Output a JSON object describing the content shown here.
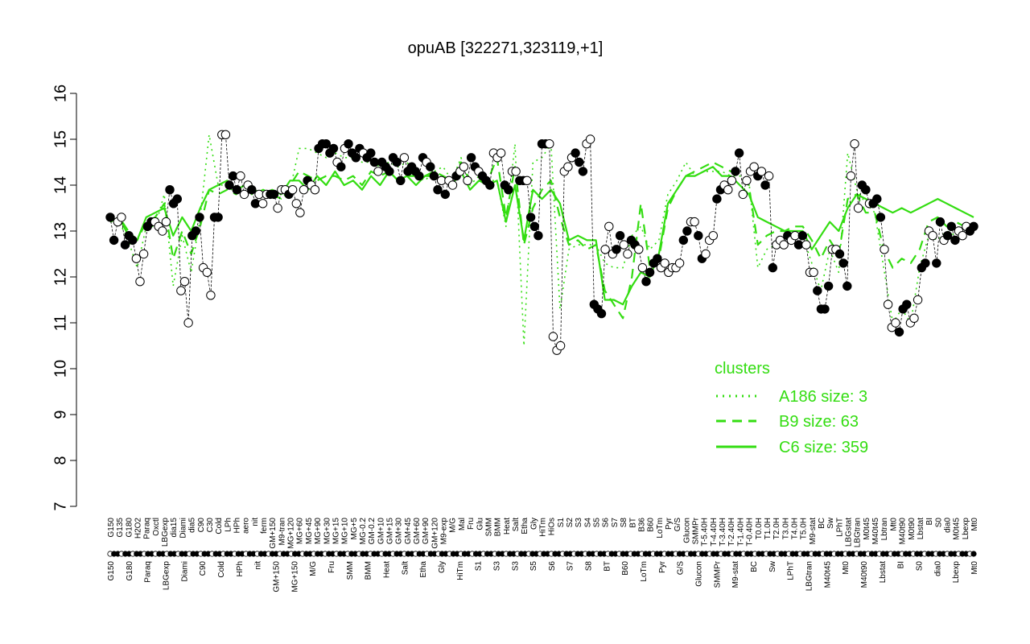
{
  "chart_data": {
    "type": "line",
    "title": "opuAB [322271,323119,+1]",
    "xlabel": "",
    "ylabel": "",
    "ylim": [
      7,
      16
    ],
    "yticks": [
      "7",
      "8",
      "9",
      "10",
      "11",
      "12",
      "13",
      "14",
      "15",
      "16"
    ],
    "colors": {
      "lines": "#33dd11",
      "point_fill_dark": "#000000",
      "point_fill_light": "#ffffff"
    },
    "xlabels_upper": [
      "G150",
      "G135",
      "G180",
      "H2O2",
      "Paraq",
      "Oxctl",
      "LBGexp",
      "dia15",
      "Diami",
      "dia5",
      "C90",
      "C30",
      "Cold",
      "LPh",
      "HPh",
      "aero",
      "nit",
      "ferm",
      "GM+150",
      "M9-tran",
      "MG+120",
      "MG+60",
      "MG+45",
      "MG+90",
      "MG+30",
      "MG+15",
      "MG+10",
      "MG+5",
      "MG-0.2",
      "GM-0.2",
      "GM+10",
      "GM+15",
      "GM+30",
      "GM+45",
      "GM+60",
      "GM+90",
      "GM+120",
      "M9-exp",
      "M/G",
      "Mal",
      "Fru",
      "Glu",
      "SMM",
      "BMM",
      "Heat",
      "Salt",
      "Etha",
      "Gly",
      "HiTm",
      "HiOs",
      "S1",
      "S2",
      "S3",
      "S4",
      "S5",
      "S6",
      "S7",
      "S8",
      "BT",
      "B36",
      "B60",
      "LoTm",
      "Pyr",
      "G/S",
      "Glucon",
      "SMMPr",
      "T-5.40H",
      "T-4.40H",
      "T-3.40H",
      "T-2.40H",
      "T-1.40H",
      "T-0.40H",
      "T0.0H",
      "T1.0H",
      "T2.0H",
      "T3.0H",
      "T4.0H",
      "T5.0H",
      "M9-stat",
      "BC",
      "Sw",
      "LPhT",
      "LBGstat",
      "LBGtran",
      "M0t45",
      "M40t45",
      "Lbtran",
      "Mt0",
      "M40t90",
      "M0t90",
      "Lbstat",
      "BI",
      "S0",
      "dia0",
      "M0t45",
      "Lbexp",
      "Mt0"
    ],
    "xlabels_lower": [
      "G150",
      "G180",
      "Paraq",
      "LBGexp",
      "Diami",
      "C90",
      "Cold",
      "HPh",
      "nit",
      "GM+150",
      "MG+150",
      "M/G",
      "Fru",
      "SMM",
      "BMM",
      "Heat",
      "Salt",
      "Etha",
      "Gly",
      "HiTm",
      "S1",
      "S3",
      "S3",
      "S5",
      "S6",
      "S7",
      "S8",
      "BT",
      "B60",
      "LoTm",
      "Pyr",
      "G/S",
      "Glucon",
      "SMMPr",
      "M9-stat",
      "BC",
      "Sw",
      "LPhT",
      "LBGtran",
      "M40t45",
      "Mt0",
      "M40t90",
      "Lbstat",
      "BI",
      "S0",
      "dia0",
      "Lbexp",
      "Mt0"
    ],
    "series": [
      {
        "name": "A186 size: 3",
        "style": "dotted",
        "values": [
          13.3,
          13.2,
          12.8,
          12.2,
          13.1,
          13.1,
          13.8,
          11.8,
          12.9,
          12.1,
          13.3,
          15.1,
          14.0,
          14.0,
          13.8,
          13.8,
          13.8,
          13.8,
          13.9,
          13.7,
          13.9,
          14.8,
          14.8,
          14.7,
          14.6,
          14.7,
          14.6,
          14.6,
          14.5,
          14.5,
          14.4,
          14.5,
          14.4,
          14.5,
          14.2,
          14.1,
          14.3,
          14.4,
          14.1,
          14.6,
          14.0,
          14.2,
          14.1,
          14.1,
          13.1,
          14.9,
          10.5,
          14.5,
          14.6,
          14.9,
          11.3,
          12.6,
          12.7,
          12.7,
          12.7,
          12.3,
          12.2,
          12.2,
          12.9,
          13.1,
          12.6,
          12.8,
          13.8,
          14.1,
          14.5,
          14.2,
          14.3,
          14.3,
          14.3,
          14.2,
          14.2,
          14.1,
          12.2,
          12.6,
          12.7,
          12.8,
          12.9,
          12.9,
          12.3,
          11.7,
          12.6,
          12.1,
          14.7,
          13.9,
          13.6,
          13.4,
          12.2,
          11.0,
          11.3,
          11.0,
          12.2,
          12.9,
          12.8,
          13.0,
          12.9,
          13.0,
          13.1
        ]
      },
      {
        "name": "B9 size: 63",
        "style": "dashed",
        "values": [
          13.2,
          13.3,
          13.0,
          12.8,
          13.2,
          13.3,
          13.6,
          12.4,
          13.0,
          12.5,
          13.1,
          13.9,
          13.8,
          13.9,
          13.8,
          14.0,
          13.8,
          13.9,
          13.8,
          13.7,
          14.0,
          14.3,
          14.2,
          14.1,
          14.2,
          14.2,
          14.1,
          14.2,
          14.0,
          14.3,
          14.2,
          14.3,
          14.1,
          14.2,
          14.2,
          14.2,
          14.3,
          14.2,
          14.1,
          14.5,
          14.1,
          14.1,
          14.1,
          14.6,
          13.3,
          14.4,
          12.7,
          13.5,
          13.9,
          14.1,
          13.3,
          12.7,
          12.8,
          12.6,
          12.7,
          11.7,
          11.4,
          11.1,
          12.0,
          13.6,
          12.2,
          12.4,
          13.5,
          13.9,
          14.2,
          14.3,
          14.4,
          14.5,
          14.4,
          14.3,
          14.2,
          14.0,
          12.7,
          12.9,
          13.0,
          13.0,
          13.1,
          13.1,
          12.8,
          12.4,
          12.8,
          12.5,
          13.7,
          13.8,
          13.4,
          13.4,
          12.6,
          12.2,
          12.4,
          12.3,
          12.6,
          13.2,
          13.3,
          13.1,
          13.2,
          13.1,
          13.1
        ]
      },
      {
        "name": "C6 size: 359",
        "style": "solid",
        "values": [
          13.2,
          13.3,
          12.9,
          12.8,
          13.3,
          13.4,
          13.5,
          12.9,
          13.3,
          13.0,
          13.5,
          13.9,
          14.0,
          14.1,
          13.9,
          14.0,
          13.9,
          13.8,
          13.9,
          13.8,
          14.1,
          14.1,
          13.9,
          14.2,
          14.0,
          14.3,
          14.0,
          14.1,
          13.9,
          14.2,
          14.0,
          14.3,
          14.1,
          14.2,
          14.0,
          14.2,
          14.2,
          14.1,
          14.0,
          14.3,
          13.9,
          14.1,
          14.0,
          14.1,
          13.2,
          14.0,
          12.8,
          13.9,
          13.7,
          13.9,
          13.6,
          12.8,
          12.9,
          12.8,
          12.8,
          11.5,
          11.5,
          11.4,
          11.8,
          12.1,
          12.0,
          12.5,
          13.6,
          13.9,
          14.2,
          14.2,
          14.3,
          14.4,
          14.2,
          14.2,
          14.0,
          13.8,
          13.3,
          13.2,
          13.1,
          13.0,
          13.0,
          13.0,
          12.6,
          12.9,
          13.2,
          13.0,
          13.5,
          13.8,
          13.7,
          13.6,
          13.5,
          13.4,
          13.5,
          13.4,
          13.5,
          13.6,
          13.7,
          13.6,
          13.5,
          13.4,
          13.3
        ]
      }
    ],
    "points": [
      {
        "v": 13.3,
        "d": 1
      },
      {
        "v": 12.8,
        "d": 1
      },
      {
        "v": 13.2,
        "d": 0
      },
      {
        "v": 13.3,
        "d": 0
      },
      {
        "v": 12.7,
        "d": 1
      },
      {
        "v": 12.9,
        "d": 1
      },
      {
        "v": 12.8,
        "d": 1
      },
      {
        "v": 12.4,
        "d": 0
      },
      {
        "v": 11.9,
        "d": 0
      },
      {
        "v": 12.5,
        "d": 0
      },
      {
        "v": 13.1,
        "d": 1
      },
      {
        "v": 13.2,
        "d": 1
      },
      {
        "v": 13.2,
        "d": 0
      },
      {
        "v": 13.1,
        "d": 0
      },
      {
        "v": 13.0,
        "d": 0
      },
      {
        "v": 13.2,
        "d": 0
      },
      {
        "v": 13.9,
        "d": 1
      },
      {
        "v": 13.6,
        "d": 1
      },
      {
        "v": 13.7,
        "d": 1
      },
      {
        "v": 11.7,
        "d": 0
      },
      {
        "v": 11.9,
        "d": 0
      },
      {
        "v": 11.0,
        "d": 0
      },
      {
        "v": 12.9,
        "d": 1
      },
      {
        "v": 13.0,
        "d": 1
      },
      {
        "v": 13.3,
        "d": 1
      },
      {
        "v": 12.2,
        "d": 0
      },
      {
        "v": 12.1,
        "d": 0
      },
      {
        "v": 11.6,
        "d": 0
      },
      {
        "v": 13.3,
        "d": 1
      },
      {
        "v": 13.3,
        "d": 1
      },
      {
        "v": 15.1,
        "d": 0
      },
      {
        "v": 15.1,
        "d": 0
      },
      {
        "v": 14.0,
        "d": 1
      },
      {
        "v": 14.2,
        "d": 1
      },
      {
        "v": 13.9,
        "d": 1
      },
      {
        "v": 14.2,
        "d": 0
      },
      {
        "v": 13.8,
        "d": 0
      },
      {
        "v": 14.0,
        "d": 0
      },
      {
        "v": 13.9,
        "d": 1
      },
      {
        "v": 13.6,
        "d": 1
      },
      {
        "v": 13.8,
        "d": 0
      },
      {
        "v": 13.6,
        "d": 0
      },
      {
        "v": 13.8,
        "d": 0
      },
      {
        "v": 13.8,
        "d": 1
      },
      {
        "v": 13.8,
        "d": 1
      },
      {
        "v": 13.5,
        "d": 0
      },
      {
        "v": 13.9,
        "d": 0
      },
      {
        "v": 13.9,
        "d": 0
      },
      {
        "v": 13.8,
        "d": 1
      },
      {
        "v": 13.9,
        "d": 0
      },
      {
        "v": 13.6,
        "d": 0
      },
      {
        "v": 13.4,
        "d": 0
      },
      {
        "v": 13.9,
        "d": 0
      },
      {
        "v": 14.1,
        "d": 1
      },
      {
        "v": 14.0,
        "d": 0
      },
      {
        "v": 13.9,
        "d": 0
      },
      {
        "v": 14.8,
        "d": 1
      },
      {
        "v": 14.9,
        "d": 1
      },
      {
        "v": 14.9,
        "d": 1
      },
      {
        "v": 14.7,
        "d": 1
      },
      {
        "v": 14.8,
        "d": 1
      },
      {
        "v": 14.5,
        "d": 0
      },
      {
        "v": 14.4,
        "d": 1
      },
      {
        "v": 14.8,
        "d": 0
      },
      {
        "v": 14.9,
        "d": 1
      },
      {
        "v": 14.7,
        "d": 1
      },
      {
        "v": 14.6,
        "d": 1
      },
      {
        "v": 14.8,
        "d": 1
      },
      {
        "v": 14.7,
        "d": 0
      },
      {
        "v": 14.6,
        "d": 1
      },
      {
        "v": 14.7,
        "d": 1
      },
      {
        "v": 14.5,
        "d": 1
      },
      {
        "v": 14.3,
        "d": 0
      },
      {
        "v": 14.5,
        "d": 1
      },
      {
        "v": 14.4,
        "d": 1
      },
      {
        "v": 14.3,
        "d": 1
      },
      {
        "v": 14.6,
        "d": 1
      },
      {
        "v": 14.5,
        "d": 1
      },
      {
        "v": 14.1,
        "d": 1
      },
      {
        "v": 14.6,
        "d": 0
      },
      {
        "v": 14.3,
        "d": 1
      },
      {
        "v": 14.4,
        "d": 1
      },
      {
        "v": 14.3,
        "d": 1
      },
      {
        "v": 14.2,
        "d": 1
      },
      {
        "v": 14.6,
        "d": 1
      },
      {
        "v": 14.5,
        "d": 0
      },
      {
        "v": 14.4,
        "d": 1
      },
      {
        "v": 14.2,
        "d": 1
      },
      {
        "v": 13.9,
        "d": 1
      },
      {
        "v": 14.1,
        "d": 0
      },
      {
        "v": 13.8,
        "d": 1
      },
      {
        "v": 14.1,
        "d": 0
      },
      {
        "v": 14.0,
        "d": 0
      },
      {
        "v": 14.2,
        "d": 1
      },
      {
        "v": 14.3,
        "d": 0
      },
      {
        "v": 14.4,
        "d": 0
      },
      {
        "v": 14.1,
        "d": 0
      },
      {
        "v": 14.6,
        "d": 1
      },
      {
        "v": 14.4,
        "d": 1
      },
      {
        "v": 14.3,
        "d": 0
      },
      {
        "v": 14.2,
        "d": 1
      },
      {
        "v": 14.1,
        "d": 1
      },
      {
        "v": 14.0,
        "d": 1
      },
      {
        "v": 14.7,
        "d": 0
      },
      {
        "v": 14.6,
        "d": 0
      },
      {
        "v": 14.7,
        "d": 0
      },
      {
        "v": 14.0,
        "d": 1
      },
      {
        "v": 13.9,
        "d": 1
      },
      {
        "v": 14.3,
        "d": 0
      },
      {
        "v": 14.3,
        "d": 0
      },
      {
        "v": 14.1,
        "d": 1
      },
      {
        "v": 14.1,
        "d": 1
      },
      {
        "v": 14.1,
        "d": 0
      },
      {
        "v": 13.3,
        "d": 1
      },
      {
        "v": 13.1,
        "d": 1
      },
      {
        "v": 12.9,
        "d": 1
      },
      {
        "v": 14.9,
        "d": 1
      },
      {
        "v": 14.9,
        "d": 1
      },
      {
        "v": 14.9,
        "d": 0
      },
      {
        "v": 10.7,
        "d": 0
      },
      {
        "v": 10.4,
        "d": 0
      },
      {
        "v": 10.5,
        "d": 0
      },
      {
        "v": 14.3,
        "d": 0
      },
      {
        "v": 14.4,
        "d": 0
      },
      {
        "v": 14.6,
        "d": 0
      },
      {
        "v": 14.7,
        "d": 1
      },
      {
        "v": 14.5,
        "d": 1
      },
      {
        "v": 14.3,
        "d": 1
      },
      {
        "v": 14.9,
        "d": 0
      },
      {
        "v": 15.0,
        "d": 0
      },
      {
        "v": 11.4,
        "d": 1
      },
      {
        "v": 11.3,
        "d": 1
      },
      {
        "v": 11.2,
        "d": 1
      },
      {
        "v": 12.6,
        "d": 0
      },
      {
        "v": 13.1,
        "d": 0
      },
      {
        "v": 12.5,
        "d": 0
      },
      {
        "v": 12.6,
        "d": 1
      },
      {
        "v": 12.9,
        "d": 1
      },
      {
        "v": 12.7,
        "d": 0
      },
      {
        "v": 12.5,
        "d": 0
      },
      {
        "v": 12.8,
        "d": 1
      },
      {
        "v": 12.7,
        "d": 1
      },
      {
        "v": 12.6,
        "d": 0
      },
      {
        "v": 12.2,
        "d": 0
      },
      {
        "v": 11.9,
        "d": 1
      },
      {
        "v": 12.1,
        "d": 1
      },
      {
        "v": 12.3,
        "d": 1
      },
      {
        "v": 12.4,
        "d": 1
      },
      {
        "v": 12.2,
        "d": 0
      },
      {
        "v": 12.3,
        "d": 0
      },
      {
        "v": 12.1,
        "d": 0
      },
      {
        "v": 12.2,
        "d": 0
      },
      {
        "v": 12.2,
        "d": 0
      },
      {
        "v": 12.3,
        "d": 0
      },
      {
        "v": 12.8,
        "d": 1
      },
      {
        "v": 13.0,
        "d": 1
      },
      {
        "v": 13.2,
        "d": 0
      },
      {
        "v": 13.2,
        "d": 0
      },
      {
        "v": 12.9,
        "d": 1
      },
      {
        "v": 12.4,
        "d": 1
      },
      {
        "v": 12.5,
        "d": 0
      },
      {
        "v": 12.8,
        "d": 0
      },
      {
        "v": 12.9,
        "d": 0
      },
      {
        "v": 13.7,
        "d": 1
      },
      {
        "v": 13.9,
        "d": 1
      },
      {
        "v": 14.0,
        "d": 0
      },
      {
        "v": 13.9,
        "d": 0
      },
      {
        "v": 14.1,
        "d": 0
      },
      {
        "v": 14.3,
        "d": 1
      },
      {
        "v": 14.7,
        "d": 1
      },
      {
        "v": 13.8,
        "d": 0
      },
      {
        "v": 14.1,
        "d": 0
      },
      {
        "v": 14.3,
        "d": 0
      },
      {
        "v": 14.4,
        "d": 0
      },
      {
        "v": 14.2,
        "d": 1
      },
      {
        "v": 14.3,
        "d": 0
      },
      {
        "v": 14.0,
        "d": 1
      },
      {
        "v": 14.2,
        "d": 0
      },
      {
        "v": 12.2,
        "d": 1
      },
      {
        "v": 12.7,
        "d": 0
      },
      {
        "v": 12.8,
        "d": 0
      },
      {
        "v": 12.7,
        "d": 0
      },
      {
        "v": 12.9,
        "d": 1
      },
      {
        "v": 12.8,
        "d": 0
      },
      {
        "v": 12.9,
        "d": 0
      },
      {
        "v": 12.7,
        "d": 1
      },
      {
        "v": 12.9,
        "d": 1
      },
      {
        "v": 12.7,
        "d": 0
      },
      {
        "v": 12.1,
        "d": 0
      },
      {
        "v": 12.1,
        "d": 0
      },
      {
        "v": 11.7,
        "d": 1
      },
      {
        "v": 11.3,
        "d": 1
      },
      {
        "v": 11.3,
        "d": 1
      },
      {
        "v": 11.8,
        "d": 1
      },
      {
        "v": 12.6,
        "d": 0
      },
      {
        "v": 12.6,
        "d": 0
      },
      {
        "v": 12.5,
        "d": 1
      },
      {
        "v": 12.3,
        "d": 1
      },
      {
        "v": 11.8,
        "d": 1
      },
      {
        "v": 14.2,
        "d": 0
      },
      {
        "v": 14.9,
        "d": 0
      },
      {
        "v": 13.5,
        "d": 0
      },
      {
        "v": 14.0,
        "d": 1
      },
      {
        "v": 13.9,
        "d": 1
      },
      {
        "v": 13.6,
        "d": 0
      },
      {
        "v": 13.6,
        "d": 1
      },
      {
        "v": 13.7,
        "d": 1
      },
      {
        "v": 13.3,
        "d": 1
      },
      {
        "v": 12.6,
        "d": 0
      },
      {
        "v": 11.4,
        "d": 0
      },
      {
        "v": 10.9,
        "d": 0
      },
      {
        "v": 11.0,
        "d": 0
      },
      {
        "v": 10.8,
        "d": 1
      },
      {
        "v": 11.3,
        "d": 1
      },
      {
        "v": 11.4,
        "d": 1
      },
      {
        "v": 11.0,
        "d": 0
      },
      {
        "v": 11.1,
        "d": 0
      },
      {
        "v": 11.5,
        "d": 0
      },
      {
        "v": 12.2,
        "d": 1
      },
      {
        "v": 12.3,
        "d": 1
      },
      {
        "v": 13.0,
        "d": 0
      },
      {
        "v": 12.9,
        "d": 0
      },
      {
        "v": 12.3,
        "d": 1
      },
      {
        "v": 13.2,
        "d": 1
      },
      {
        "v": 12.8,
        "d": 0
      },
      {
        "v": 12.9,
        "d": 1
      },
      {
        "v": 13.1,
        "d": 1
      },
      {
        "v": 12.8,
        "d": 1
      },
      {
        "v": 13.0,
        "d": 0
      },
      {
        "v": 12.9,
        "d": 0
      },
      {
        "v": 13.1,
        "d": 0
      },
      {
        "v": 13.0,
        "d": 1
      },
      {
        "v": 13.1,
        "d": 1
      }
    ],
    "legend": {
      "title": "clusters",
      "position": "bottom-right"
    },
    "grid": false
  }
}
